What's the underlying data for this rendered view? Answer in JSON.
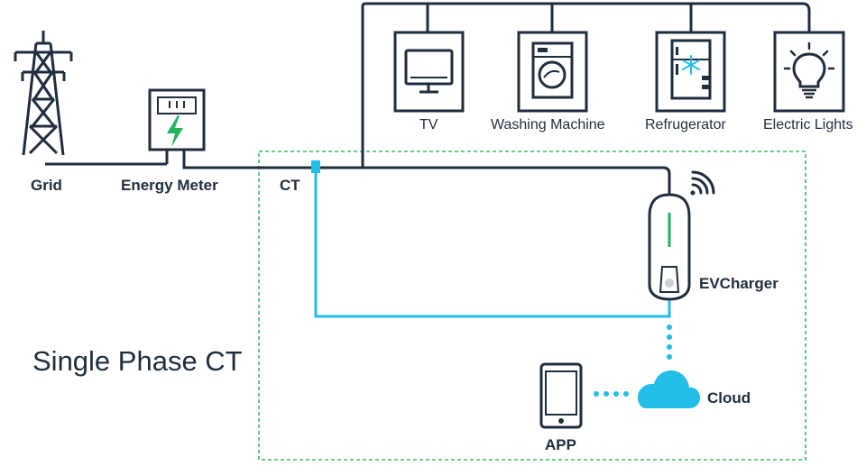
{
  "diagram": {
    "title": "Single Phase CT",
    "nodes": {
      "grid": "Grid",
      "energy_meter": "Energy Meter",
      "ct": "CT",
      "ev_charger": "EVCharger",
      "cloud": "Cloud",
      "app": "APP"
    },
    "appliances": [
      {
        "label": "TV",
        "icon": "tv-icon"
      },
      {
        "label": "Washing Machine",
        "icon": "washing-machine-icon"
      },
      {
        "label": "Refrugerator",
        "icon": "refrigerator-icon"
      },
      {
        "label": "Electric Lights",
        "icon": "light-bulb-icon"
      }
    ],
    "colors": {
      "wire": "#1f2d3d",
      "ct_wire": "#23bde8",
      "boundary": "#3db86b",
      "bolt": "#22b35e",
      "cloud": "#23bde8"
    }
  }
}
